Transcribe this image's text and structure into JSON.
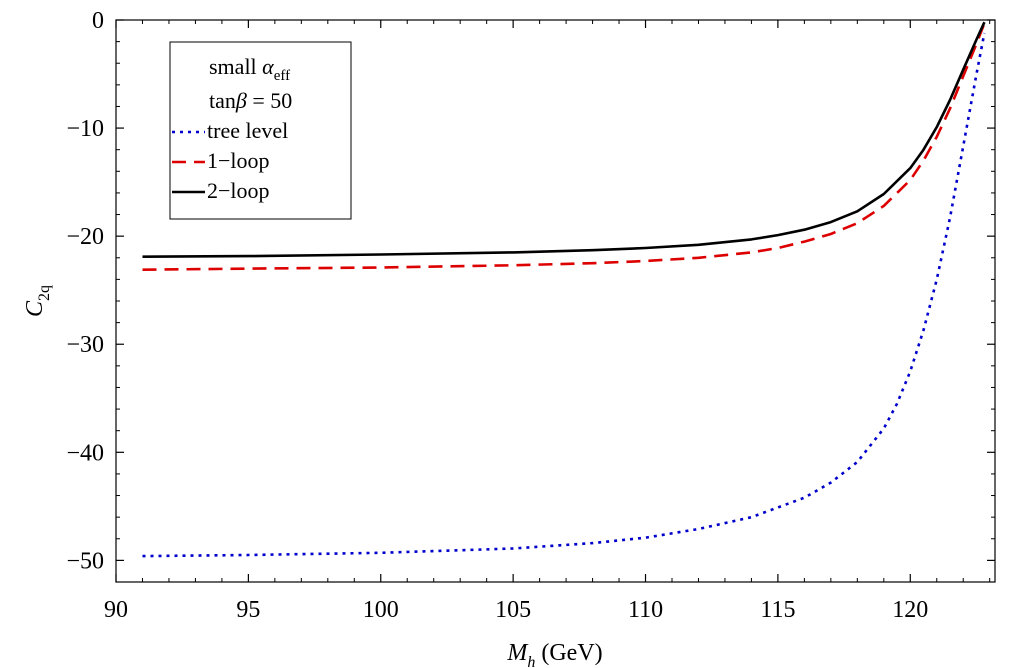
{
  "chart_data": {
    "type": "line",
    "xlabel": {
      "symbol": "M",
      "sub": "h",
      "unit": " (GeV)"
    },
    "ylabel": {
      "symbol": "C",
      "sub": "2q"
    },
    "xlim": [
      90,
      123.2
    ],
    "ylim": [
      -52,
      0
    ],
    "xticks": [
      90,
      95,
      100,
      105,
      110,
      115,
      120
    ],
    "xtick_labels": [
      "90",
      "95",
      "100",
      "105",
      "110",
      "115",
      "120"
    ],
    "yticks": [
      0,
      -10,
      -20,
      -30,
      -40,
      -50
    ],
    "ytick_labels": [
      "0",
      "−10",
      "−20",
      "−30",
      "−40",
      "−50"
    ],
    "grid": false,
    "legend": {
      "placement": "top-left",
      "line1": {
        "prefix": "small ",
        "symbol": "α",
        "sub": "eff"
      },
      "line2": {
        "prefix": "tan",
        "symbol": "β",
        "suffix": " = 50"
      }
    },
    "series": [
      {
        "name": "tree level",
        "color": "#0000cc",
        "dash": "dotted",
        "x": [
          91,
          95,
          100,
          105,
          108,
          110,
          112,
          114,
          116,
          117,
          118,
          119,
          119.5,
          120,
          120.5,
          121,
          121.5,
          122,
          122.5,
          122.8
        ],
        "y": [
          -49.6,
          -49.5,
          -49.3,
          -48.9,
          -48.4,
          -47.9,
          -47.1,
          -46,
          -44.2,
          -42.8,
          -40.9,
          -37.8,
          -35.5,
          -32.5,
          -28.7,
          -24,
          -18.3,
          -11.7,
          -5,
          -1.2
        ]
      },
      {
        "name": "1−loop",
        "color": "#dd0000",
        "dash": "dashed",
        "x": [
          91,
          95,
          100,
          105,
          108,
          110,
          112,
          114,
          115,
          116,
          117,
          118,
          119,
          120,
          120.5,
          121,
          121.5,
          122,
          122.5,
          122.8
        ],
        "y": [
          -23.1,
          -23.0,
          -22.9,
          -22.7,
          -22.5,
          -22.3,
          -22,
          -21.5,
          -21.1,
          -20.5,
          -19.8,
          -18.8,
          -17.2,
          -14.8,
          -13,
          -10.8,
          -8.2,
          -5.2,
          -2.2,
          -0.3
        ]
      },
      {
        "name": "2−loop",
        "color": "#000000",
        "dash": "solid",
        "x": [
          91,
          95,
          100,
          105,
          108,
          110,
          112,
          114,
          115,
          116,
          117,
          118,
          119,
          120,
          120.5,
          121,
          121.5,
          122,
          122.5,
          122.8
        ],
        "y": [
          -21.9,
          -21.85,
          -21.7,
          -21.5,
          -21.3,
          -21.1,
          -20.8,
          -20.3,
          -19.9,
          -19.4,
          -18.7,
          -17.7,
          -16.1,
          -13.7,
          -12,
          -9.9,
          -7.4,
          -4.6,
          -1.8,
          -0.2
        ]
      }
    ]
  }
}
